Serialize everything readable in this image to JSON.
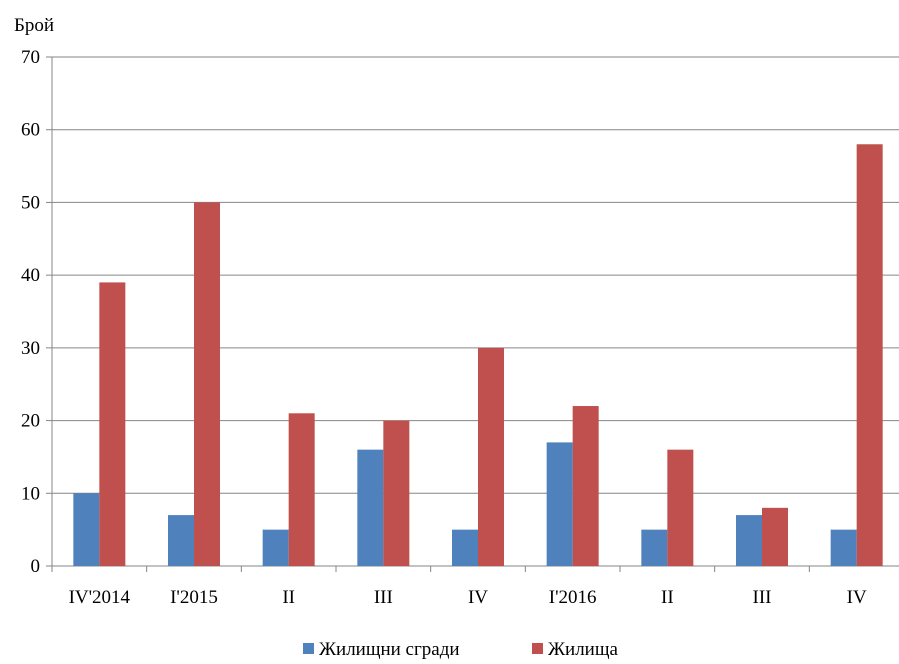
{
  "chart_data": {
    "type": "bar",
    "title": "",
    "xlabel": "",
    "ylabel": "Брой",
    "ylim": [
      0,
      70
    ],
    "yticks": [
      0,
      10,
      20,
      30,
      40,
      50,
      60,
      70
    ],
    "grid": true,
    "legend_position": "bottom",
    "categories": [
      "IV'2014",
      "I'2015",
      "II",
      "III",
      "IV",
      "I'2016",
      "II",
      "III",
      "IV"
    ],
    "series": [
      {
        "name": "Жилищни сгради",
        "color": "#4f81bd",
        "values": [
          10,
          7,
          5,
          16,
          5,
          17,
          5,
          7,
          5
        ]
      },
      {
        "name": "Жилища",
        "color": "#c0504d",
        "values": [
          39,
          50,
          21,
          20,
          30,
          22,
          16,
          8,
          58
        ]
      }
    ]
  }
}
